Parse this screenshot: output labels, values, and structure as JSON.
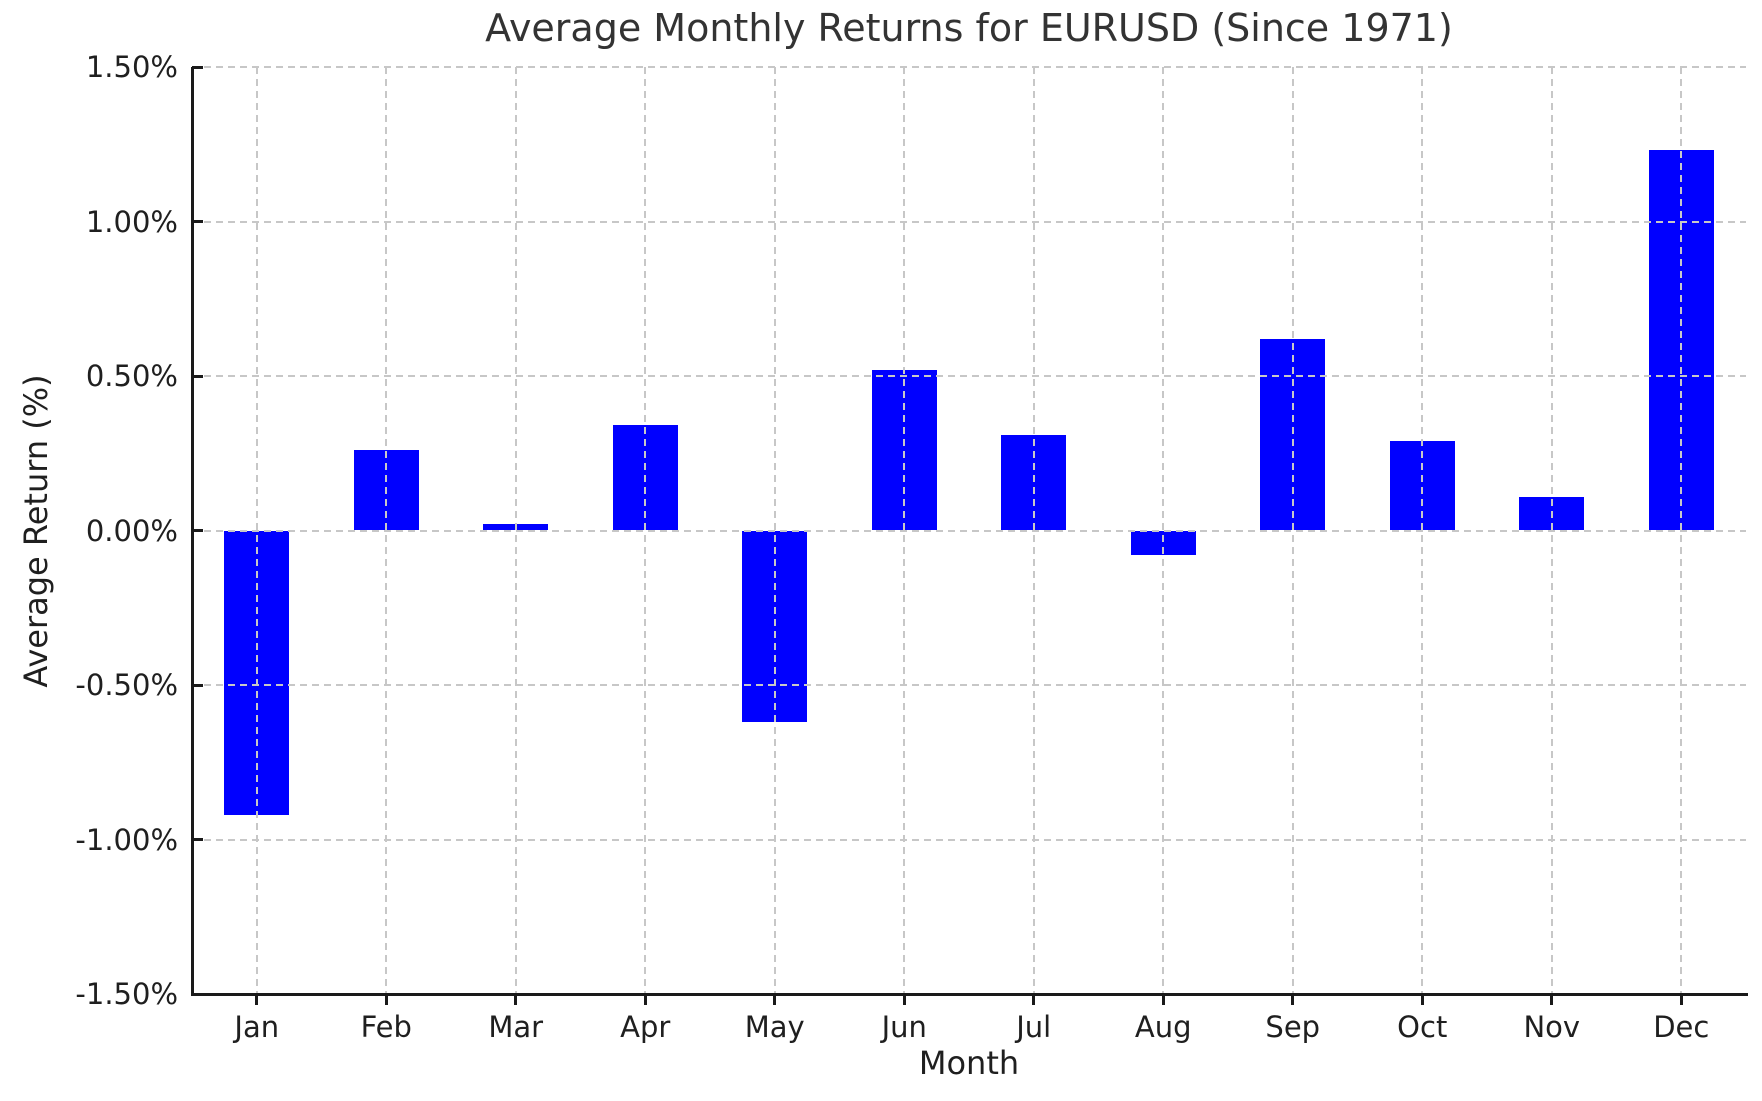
{
  "chart_data": {
    "type": "bar",
    "title": "Average Monthly Returns for EURUSD (Since 1971)",
    "xlabel": "Month",
    "ylabel": "Average Return (%)",
    "categories": [
      "Jan",
      "Feb",
      "Mar",
      "Apr",
      "May",
      "Jun",
      "Jul",
      "Aug",
      "Sep",
      "Oct",
      "Nov",
      "Dec"
    ],
    "values": [
      -0.92,
      0.26,
      0.02,
      0.34,
      -0.62,
      0.52,
      0.31,
      -0.08,
      0.62,
      0.29,
      0.11,
      1.23
    ],
    "ylim": [
      -1.5,
      1.5
    ],
    "ytick_step": 0.5,
    "ytick_labels": [
      "1.50%",
      "1.00%",
      "0.50%",
      "0.00%",
      "-0.50%",
      "-1.00%",
      "-1.50%"
    ],
    "ytick_values": [
      1.5,
      1.0,
      0.5,
      0.0,
      -0.5,
      -1.0,
      -1.5
    ],
    "grid": true,
    "grid_style": "dashed",
    "legend": "none"
  },
  "colors": {
    "bar": "#0000ff",
    "grid": "#c7c7c7",
    "axis": "#1a1a1a",
    "title_text": "#333333",
    "background": "#ffffff"
  }
}
